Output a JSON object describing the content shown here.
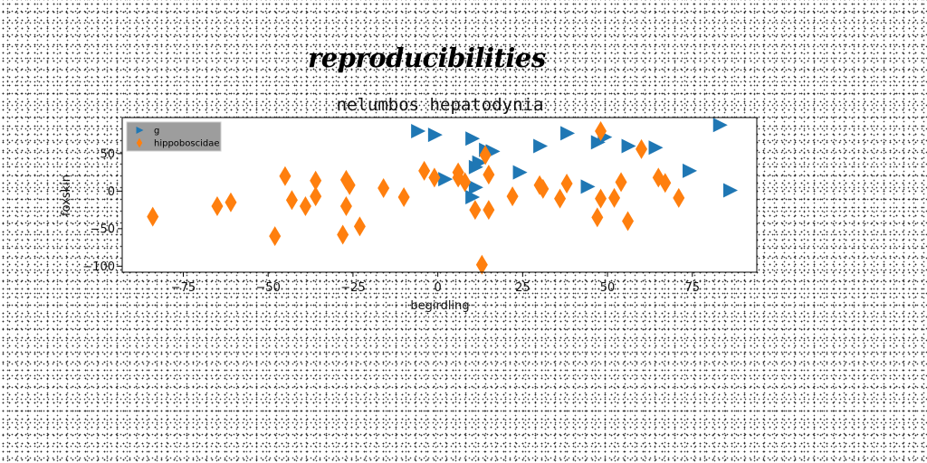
{
  "suptitle": "reproducibilities",
  "chart_data": {
    "type": "scatter",
    "title": "nelumbos hepatodynia",
    "xlabel": "begirdling",
    "ylabel": "foxskin",
    "xlim": [
      -93,
      94
    ],
    "ylim": [
      -108,
      98
    ],
    "xticks": [
      -75,
      -50,
      -25,
      0,
      25,
      50,
      75
    ],
    "yticks": [
      -100,
      -50,
      0,
      50
    ],
    "grid": false,
    "legend_position": "top-left",
    "series": [
      {
        "name": "g",
        "marker": "triangle-right",
        "color": "#1f77b4",
        "points": [
          [
            -6,
            80
          ],
          [
            -1,
            75
          ],
          [
            2,
            16
          ],
          [
            10,
            70
          ],
          [
            10,
            -8
          ],
          [
            11,
            32
          ],
          [
            11,
            5
          ],
          [
            12,
            38
          ],
          [
            14,
            55
          ],
          [
            16,
            53
          ],
          [
            24,
            25
          ],
          [
            30,
            60
          ],
          [
            38,
            77
          ],
          [
            44,
            6
          ],
          [
            47,
            65
          ],
          [
            49,
            72
          ],
          [
            56,
            60
          ],
          [
            64,
            58
          ],
          [
            74,
            27
          ],
          [
            83,
            88
          ],
          [
            86,
            1
          ]
        ]
      },
      {
        "name": "hippoboscidae",
        "marker": "diamond",
        "color": "#ff7f0e",
        "points": [
          [
            -84,
            -34
          ],
          [
            -65,
            -20
          ],
          [
            -61,
            -15
          ],
          [
            -48,
            -60
          ],
          [
            -45,
            20
          ],
          [
            -43,
            -12
          ],
          [
            -39,
            -20
          ],
          [
            -36,
            14
          ],
          [
            -36,
            -7
          ],
          [
            -28,
            -58
          ],
          [
            -27,
            -20
          ],
          [
            -27,
            15
          ],
          [
            -26,
            8
          ],
          [
            -23,
            -47
          ],
          [
            -16,
            4
          ],
          [
            -10,
            -8
          ],
          [
            -4,
            27
          ],
          [
            -1,
            18
          ],
          [
            6,
            25
          ],
          [
            6,
            18
          ],
          [
            8,
            12
          ],
          [
            11,
            -25
          ],
          [
            13,
            -98
          ],
          [
            14,
            48
          ],
          [
            15,
            -25
          ],
          [
            15,
            22
          ],
          [
            22,
            -7
          ],
          [
            30,
            8
          ],
          [
            31,
            3
          ],
          [
            36,
            -10
          ],
          [
            38,
            10
          ],
          [
            47,
            -35
          ],
          [
            48,
            -10
          ],
          [
            48,
            80
          ],
          [
            52,
            -9
          ],
          [
            54,
            12
          ],
          [
            56,
            -40
          ],
          [
            60,
            56
          ],
          [
            65,
            18
          ],
          [
            67,
            11
          ],
          [
            71,
            -9
          ]
        ]
      }
    ]
  }
}
